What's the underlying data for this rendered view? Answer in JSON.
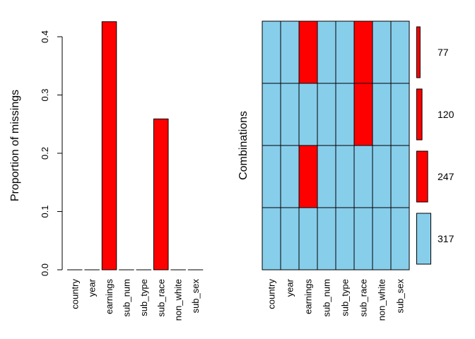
{
  "chart_data": [
    {
      "type": "bar",
      "ylabel": "Proportion of missings",
      "xlabel": "",
      "categories": [
        "country",
        "year",
        "earnings",
        "sub_num",
        "sub_type",
        "sub_race",
        "non_white",
        "sub_sex"
      ],
      "values": [
        0,
        0,
        0.4258,
        0,
        0,
        0.2589,
        0,
        0
      ],
      "ylim": [
        0,
        0.4
      ],
      "yticks": [
        "0.0",
        "0.1",
        "0.2",
        "0.3",
        "0.4"
      ],
      "bar_color": "#FF0000"
    },
    {
      "type": "heatmap",
      "ylabel": "Combinations",
      "categories": [
        "country",
        "year",
        "earnings",
        "sub_num",
        "sub_type",
        "sub_race",
        "non_white",
        "sub_sex"
      ],
      "combinations": [
        {
          "pattern": [
            0,
            0,
            1,
            0,
            0,
            1,
            0,
            0
          ],
          "count": 77,
          "label": "77"
        },
        {
          "pattern": [
            0,
            0,
            0,
            0,
            0,
            1,
            0,
            0
          ],
          "count": 120,
          "label": "120"
        },
        {
          "pattern": [
            0,
            0,
            1,
            0,
            0,
            0,
            0,
            0
          ],
          "count": 247,
          "label": "247"
        },
        {
          "pattern": [
            0,
            0,
            0,
            0,
            0,
            0,
            0,
            0
          ],
          "count": 317,
          "label": "317"
        }
      ],
      "missing_color": "#FF0000",
      "observed_color": "#87CEEB"
    }
  ]
}
